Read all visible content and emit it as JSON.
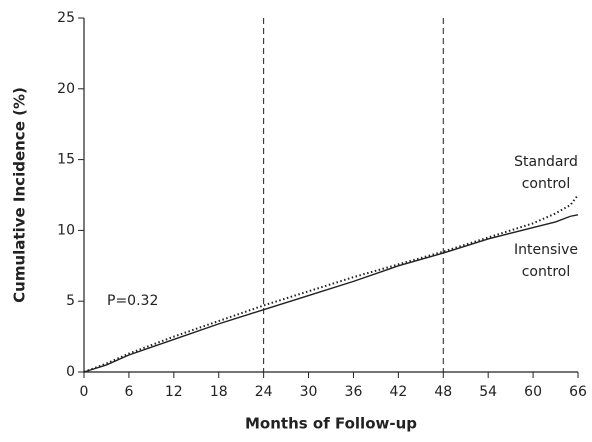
{
  "chart_data": {
    "type": "line",
    "xlabel": "Months of Follow-up",
    "ylabel": "Cumulative Incidence (%)",
    "x": [
      0,
      3,
      6,
      12,
      18,
      24,
      30,
      36,
      42,
      48,
      54,
      60,
      63,
      65,
      66
    ],
    "series": [
      {
        "name": "Standard control",
        "color": "#222222",
        "dash": "dotted",
        "values": [
          0,
          0.6,
          1.3,
          2.5,
          3.6,
          4.7,
          5.7,
          6.7,
          7.6,
          8.5,
          9.5,
          10.5,
          11.2,
          11.8,
          12.5
        ]
      },
      {
        "name": "Intensive control",
        "color": "#222222",
        "dash": "solid",
        "values": [
          0,
          0.5,
          1.2,
          2.3,
          3.4,
          4.4,
          5.4,
          6.4,
          7.5,
          8.4,
          9.4,
          10.2,
          10.6,
          11.0,
          11.1
        ]
      }
    ],
    "xlim": [
      0,
      66
    ],
    "xticks": [
      0,
      6,
      12,
      18,
      24,
      30,
      36,
      42,
      48,
      54,
      60,
      66
    ],
    "ylim": [
      0,
      25
    ],
    "yticks": [
      0,
      5,
      10,
      15,
      20,
      25
    ],
    "reference_lines": [
      24,
      48
    ],
    "annotation": "P=0.32"
  }
}
